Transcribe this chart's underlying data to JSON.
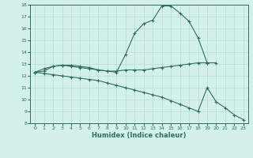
{
  "xlabel": "Humidex (Indice chaleur)",
  "x": [
    0,
    1,
    2,
    3,
    4,
    5,
    6,
    7,
    8,
    9,
    10,
    11,
    12,
    13,
    14,
    15,
    16,
    17,
    18,
    19,
    20,
    21,
    22,
    23
  ],
  "curve_max": [
    12.3,
    12.6,
    12.8,
    12.9,
    12.9,
    12.8,
    12.7,
    12.5,
    12.4,
    12.3,
    13.8,
    15.6,
    16.4,
    16.7,
    17.9,
    17.9,
    17.3,
    16.6,
    15.2,
    13.1,
    null,
    null,
    null,
    null
  ],
  "curve_mean": [
    12.3,
    12.4,
    12.8,
    12.9,
    12.8,
    12.7,
    12.6,
    12.5,
    12.4,
    12.4,
    12.5,
    12.5,
    12.5,
    12.6,
    12.7,
    12.8,
    12.9,
    13.0,
    13.1,
    13.1,
    13.1,
    null,
    null,
    null
  ],
  "curve_min": [
    12.3,
    12.2,
    12.1,
    12.0,
    11.9,
    11.8,
    11.7,
    11.6,
    11.4,
    11.2,
    11.0,
    10.8,
    10.6,
    10.4,
    10.2,
    9.9,
    9.6,
    9.3,
    9.0,
    11.0,
    9.8,
    9.3,
    8.7,
    8.3
  ],
  "color": "#2d6e63",
  "bg_color": "#d4f0eb",
  "grid_color": "#b8ddd7",
  "ylim": [
    8,
    18
  ],
  "xlim": [
    -0.5,
    23.5
  ],
  "yticks": [
    8,
    9,
    10,
    11,
    12,
    13,
    14,
    15,
    16,
    17,
    18
  ],
  "xticks": [
    0,
    1,
    2,
    3,
    4,
    5,
    6,
    7,
    8,
    9,
    10,
    11,
    12,
    13,
    14,
    15,
    16,
    17,
    18,
    19,
    20,
    21,
    22,
    23
  ]
}
